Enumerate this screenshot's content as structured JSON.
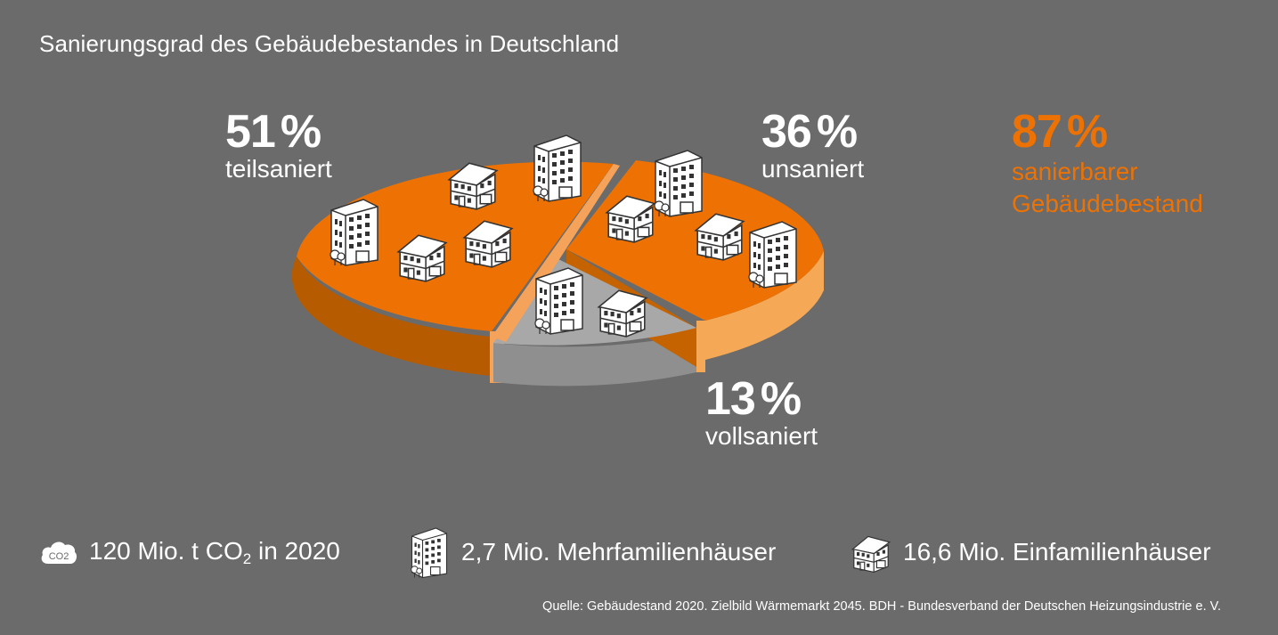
{
  "title": "Sanierungsgrad des Gebäudebestandes in Deutschland",
  "chart_data": {
    "type": "pie",
    "title": "Sanierungsgrad des Gebäudebestandes in Deutschland",
    "slices": [
      {
        "label": "teilsaniert",
        "value": 51,
        "display": "51",
        "color": "#ee7203"
      },
      {
        "label": "unsaniert",
        "value": 36,
        "display": "36",
        "color": "#ee7203"
      },
      {
        "label": "vollsaniert",
        "value": 13,
        "display": "13",
        "color": "#a8a8a8"
      }
    ],
    "unit": "%",
    "summary": {
      "value": "87",
      "unit": "%",
      "line1": "sanierbarer",
      "line2": "Gebäudebestand",
      "color": "#ee7203"
    }
  },
  "legend": {
    "co2": {
      "icon": "co2-cloud-icon",
      "icon_text": "CO2",
      "prefix": "120 Mio. t CO",
      "sub": "2",
      "suffix": " in 2020"
    },
    "mfh": {
      "icon": "apartment-building-icon",
      "text": "2,7 Mio. Mehrfamilienhäuser"
    },
    "efh": {
      "icon": "house-icon",
      "text": "16,6 Mio. Einfamilienhäuser"
    }
  },
  "source": "Quelle: Gebäudestand 2020. Zielbild Wärmemarkt 2045. BDH - Bundesverband der Deutschen Heizungsindustrie e. V.",
  "colors": {
    "background": "#6b6b6b",
    "accent": "#ee7203",
    "accent_dark": "#b65b00",
    "accent_light": "#f5a957",
    "grey_slice": "#a8a8a8"
  }
}
